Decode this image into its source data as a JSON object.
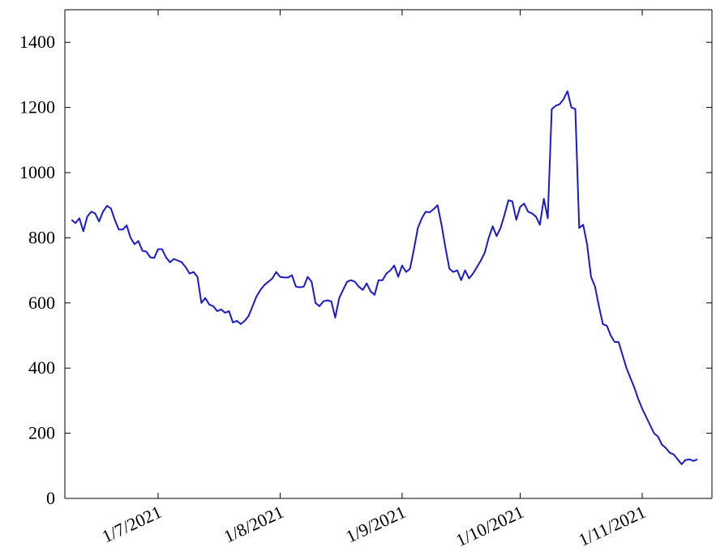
{
  "chart_data": {
    "type": "line",
    "title": "",
    "xlabel": "",
    "ylabel": "",
    "ylim": [
      0,
      1500
    ],
    "x_range": [
      "2021-06-15",
      "2021-11-22"
    ],
    "y_ticks": [
      "0",
      "200",
      "400",
      "600",
      "800",
      "1000",
      "1200",
      "1400"
    ],
    "x_ticks": [
      {
        "date": "2021-07-01",
        "label": "1/7/2021"
      },
      {
        "date": "2021-08-01",
        "label": "1/8/2021"
      },
      {
        "date": "2021-09-01",
        "label": "1/9/2021"
      },
      {
        "date": "2021-10-01",
        "label": "1/10/2021"
      },
      {
        "date": "2021-11-01",
        "label": "1/11/2021"
      }
    ],
    "grid": false,
    "series": [
      {
        "color": "#1a1acc",
        "points": [
          [
            "2021-06-09",
            855
          ],
          [
            "2021-06-10",
            845
          ],
          [
            "2021-06-11",
            860
          ],
          [
            "2021-06-12",
            820
          ],
          [
            "2021-06-13",
            865
          ],
          [
            "2021-06-14",
            880
          ],
          [
            "2021-06-15",
            875
          ],
          [
            "2021-06-16",
            850
          ],
          [
            "2021-06-17",
            880
          ],
          [
            "2021-06-18",
            898
          ],
          [
            "2021-06-19",
            890
          ],
          [
            "2021-06-20",
            855
          ],
          [
            "2021-06-21",
            825
          ],
          [
            "2021-06-22",
            825
          ],
          [
            "2021-06-23",
            838
          ],
          [
            "2021-06-24",
            800
          ],
          [
            "2021-06-25",
            780
          ],
          [
            "2021-06-26",
            790
          ],
          [
            "2021-06-27",
            760
          ],
          [
            "2021-06-28",
            758
          ],
          [
            "2021-06-29",
            740
          ],
          [
            "2021-06-30",
            738
          ],
          [
            "2021-07-01",
            765
          ],
          [
            "2021-07-02",
            765
          ],
          [
            "2021-07-03",
            740
          ],
          [
            "2021-07-04",
            725
          ],
          [
            "2021-07-05",
            735
          ],
          [
            "2021-07-06",
            730
          ],
          [
            "2021-07-07",
            725
          ],
          [
            "2021-07-08",
            710
          ],
          [
            "2021-07-09",
            690
          ],
          [
            "2021-07-10",
            695
          ],
          [
            "2021-07-11",
            680
          ],
          [
            "2021-07-12",
            600
          ],
          [
            "2021-07-13",
            615
          ],
          [
            "2021-07-14",
            595
          ],
          [
            "2021-07-15",
            590
          ],
          [
            "2021-07-16",
            575
          ],
          [
            "2021-07-17",
            580
          ],
          [
            "2021-07-18",
            570
          ],
          [
            "2021-07-19",
            575
          ],
          [
            "2021-07-20",
            540
          ],
          [
            "2021-07-21",
            545
          ],
          [
            "2021-07-22",
            535
          ],
          [
            "2021-07-23",
            545
          ],
          [
            "2021-07-24",
            560
          ],
          [
            "2021-07-25",
            590
          ],
          [
            "2021-07-26",
            620
          ],
          [
            "2021-07-27",
            640
          ],
          [
            "2021-07-28",
            655
          ],
          [
            "2021-07-29",
            665
          ],
          [
            "2021-07-30",
            675
          ],
          [
            "2021-07-31",
            695
          ],
          [
            "2021-08-01",
            680
          ],
          [
            "2021-08-02",
            678
          ],
          [
            "2021-08-03",
            678
          ],
          [
            "2021-08-04",
            685
          ],
          [
            "2021-08-05",
            650
          ],
          [
            "2021-08-06",
            648
          ],
          [
            "2021-08-07",
            650
          ],
          [
            "2021-08-08",
            680
          ],
          [
            "2021-08-09",
            665
          ],
          [
            "2021-08-10",
            600
          ],
          [
            "2021-08-11",
            590
          ],
          [
            "2021-08-12",
            605
          ],
          [
            "2021-08-13",
            608
          ],
          [
            "2021-08-14",
            605
          ],
          [
            "2021-08-15",
            555
          ],
          [
            "2021-08-16",
            615
          ],
          [
            "2021-08-17",
            640
          ],
          [
            "2021-08-18",
            665
          ],
          [
            "2021-08-19",
            670
          ],
          [
            "2021-08-20",
            665
          ],
          [
            "2021-08-21",
            650
          ],
          [
            "2021-08-22",
            640
          ],
          [
            "2021-08-23",
            660
          ],
          [
            "2021-08-24",
            635
          ],
          [
            "2021-08-25",
            625
          ],
          [
            "2021-08-26",
            670
          ],
          [
            "2021-08-27",
            670
          ],
          [
            "2021-08-28",
            690
          ],
          [
            "2021-08-29",
            700
          ],
          [
            "2021-08-30",
            715
          ],
          [
            "2021-08-31",
            680
          ],
          [
            "2021-09-01",
            715
          ],
          [
            "2021-09-02",
            695
          ],
          [
            "2021-09-03",
            705
          ],
          [
            "2021-09-04",
            765
          ],
          [
            "2021-09-05",
            830
          ],
          [
            "2021-09-06",
            860
          ],
          [
            "2021-09-07",
            880
          ],
          [
            "2021-09-08",
            878
          ],
          [
            "2021-09-09",
            888
          ],
          [
            "2021-09-10",
            900
          ],
          [
            "2021-09-11",
            840
          ],
          [
            "2021-09-12",
            770
          ],
          [
            "2021-09-13",
            705
          ],
          [
            "2021-09-14",
            695
          ],
          [
            "2021-09-15",
            700
          ],
          [
            "2021-09-16",
            670
          ],
          [
            "2021-09-17",
            700
          ],
          [
            "2021-09-18",
            675
          ],
          [
            "2021-09-19",
            690
          ],
          [
            "2021-09-20",
            710
          ],
          [
            "2021-09-21",
            730
          ],
          [
            "2021-09-22",
            755
          ],
          [
            "2021-09-23",
            800
          ],
          [
            "2021-09-24",
            835
          ],
          [
            "2021-09-25",
            805
          ],
          [
            "2021-09-26",
            830
          ],
          [
            "2021-09-27",
            870
          ],
          [
            "2021-09-28",
            915
          ],
          [
            "2021-09-29",
            912
          ],
          [
            "2021-09-30",
            855
          ],
          [
            "2021-10-01",
            895
          ],
          [
            "2021-10-02",
            905
          ],
          [
            "2021-10-03",
            880
          ],
          [
            "2021-10-04",
            875
          ],
          [
            "2021-10-05",
            865
          ],
          [
            "2021-10-06",
            840
          ],
          [
            "2021-10-07",
            920
          ],
          [
            "2021-10-08",
            860
          ],
          [
            "2021-10-09",
            1195
          ],
          [
            "2021-10-10",
            1205
          ],
          [
            "2021-10-11",
            1210
          ],
          [
            "2021-10-12",
            1225
          ],
          [
            "2021-10-13",
            1250
          ],
          [
            "2021-10-14",
            1200
          ],
          [
            "2021-10-15",
            1195
          ],
          [
            "2021-10-16",
            830
          ],
          [
            "2021-10-17",
            840
          ],
          [
            "2021-10-18",
            780
          ],
          [
            "2021-10-19",
            680
          ],
          [
            "2021-10-20",
            650
          ],
          [
            "2021-10-21",
            590
          ],
          [
            "2021-10-22",
            535
          ],
          [
            "2021-10-23",
            530
          ],
          [
            "2021-10-24",
            500
          ],
          [
            "2021-10-25",
            480
          ],
          [
            "2021-10-26",
            480
          ],
          [
            "2021-10-27",
            440
          ],
          [
            "2021-10-28",
            400
          ],
          [
            "2021-10-29",
            370
          ],
          [
            "2021-10-30",
            340
          ],
          [
            "2021-10-31",
            305
          ],
          [
            "2021-11-01",
            275
          ],
          [
            "2021-11-02",
            250
          ],
          [
            "2021-11-03",
            225
          ],
          [
            "2021-11-04",
            200
          ],
          [
            "2021-11-05",
            190
          ],
          [
            "2021-11-06",
            165
          ],
          [
            "2021-11-07",
            155
          ],
          [
            "2021-11-08",
            140
          ],
          [
            "2021-11-09",
            135
          ],
          [
            "2021-11-10",
            120
          ],
          [
            "2021-11-11",
            105
          ],
          [
            "2021-11-12",
            118
          ],
          [
            "2021-11-13",
            120
          ],
          [
            "2021-11-14",
            115
          ],
          [
            "2021-11-15",
            120
          ]
        ]
      }
    ]
  }
}
